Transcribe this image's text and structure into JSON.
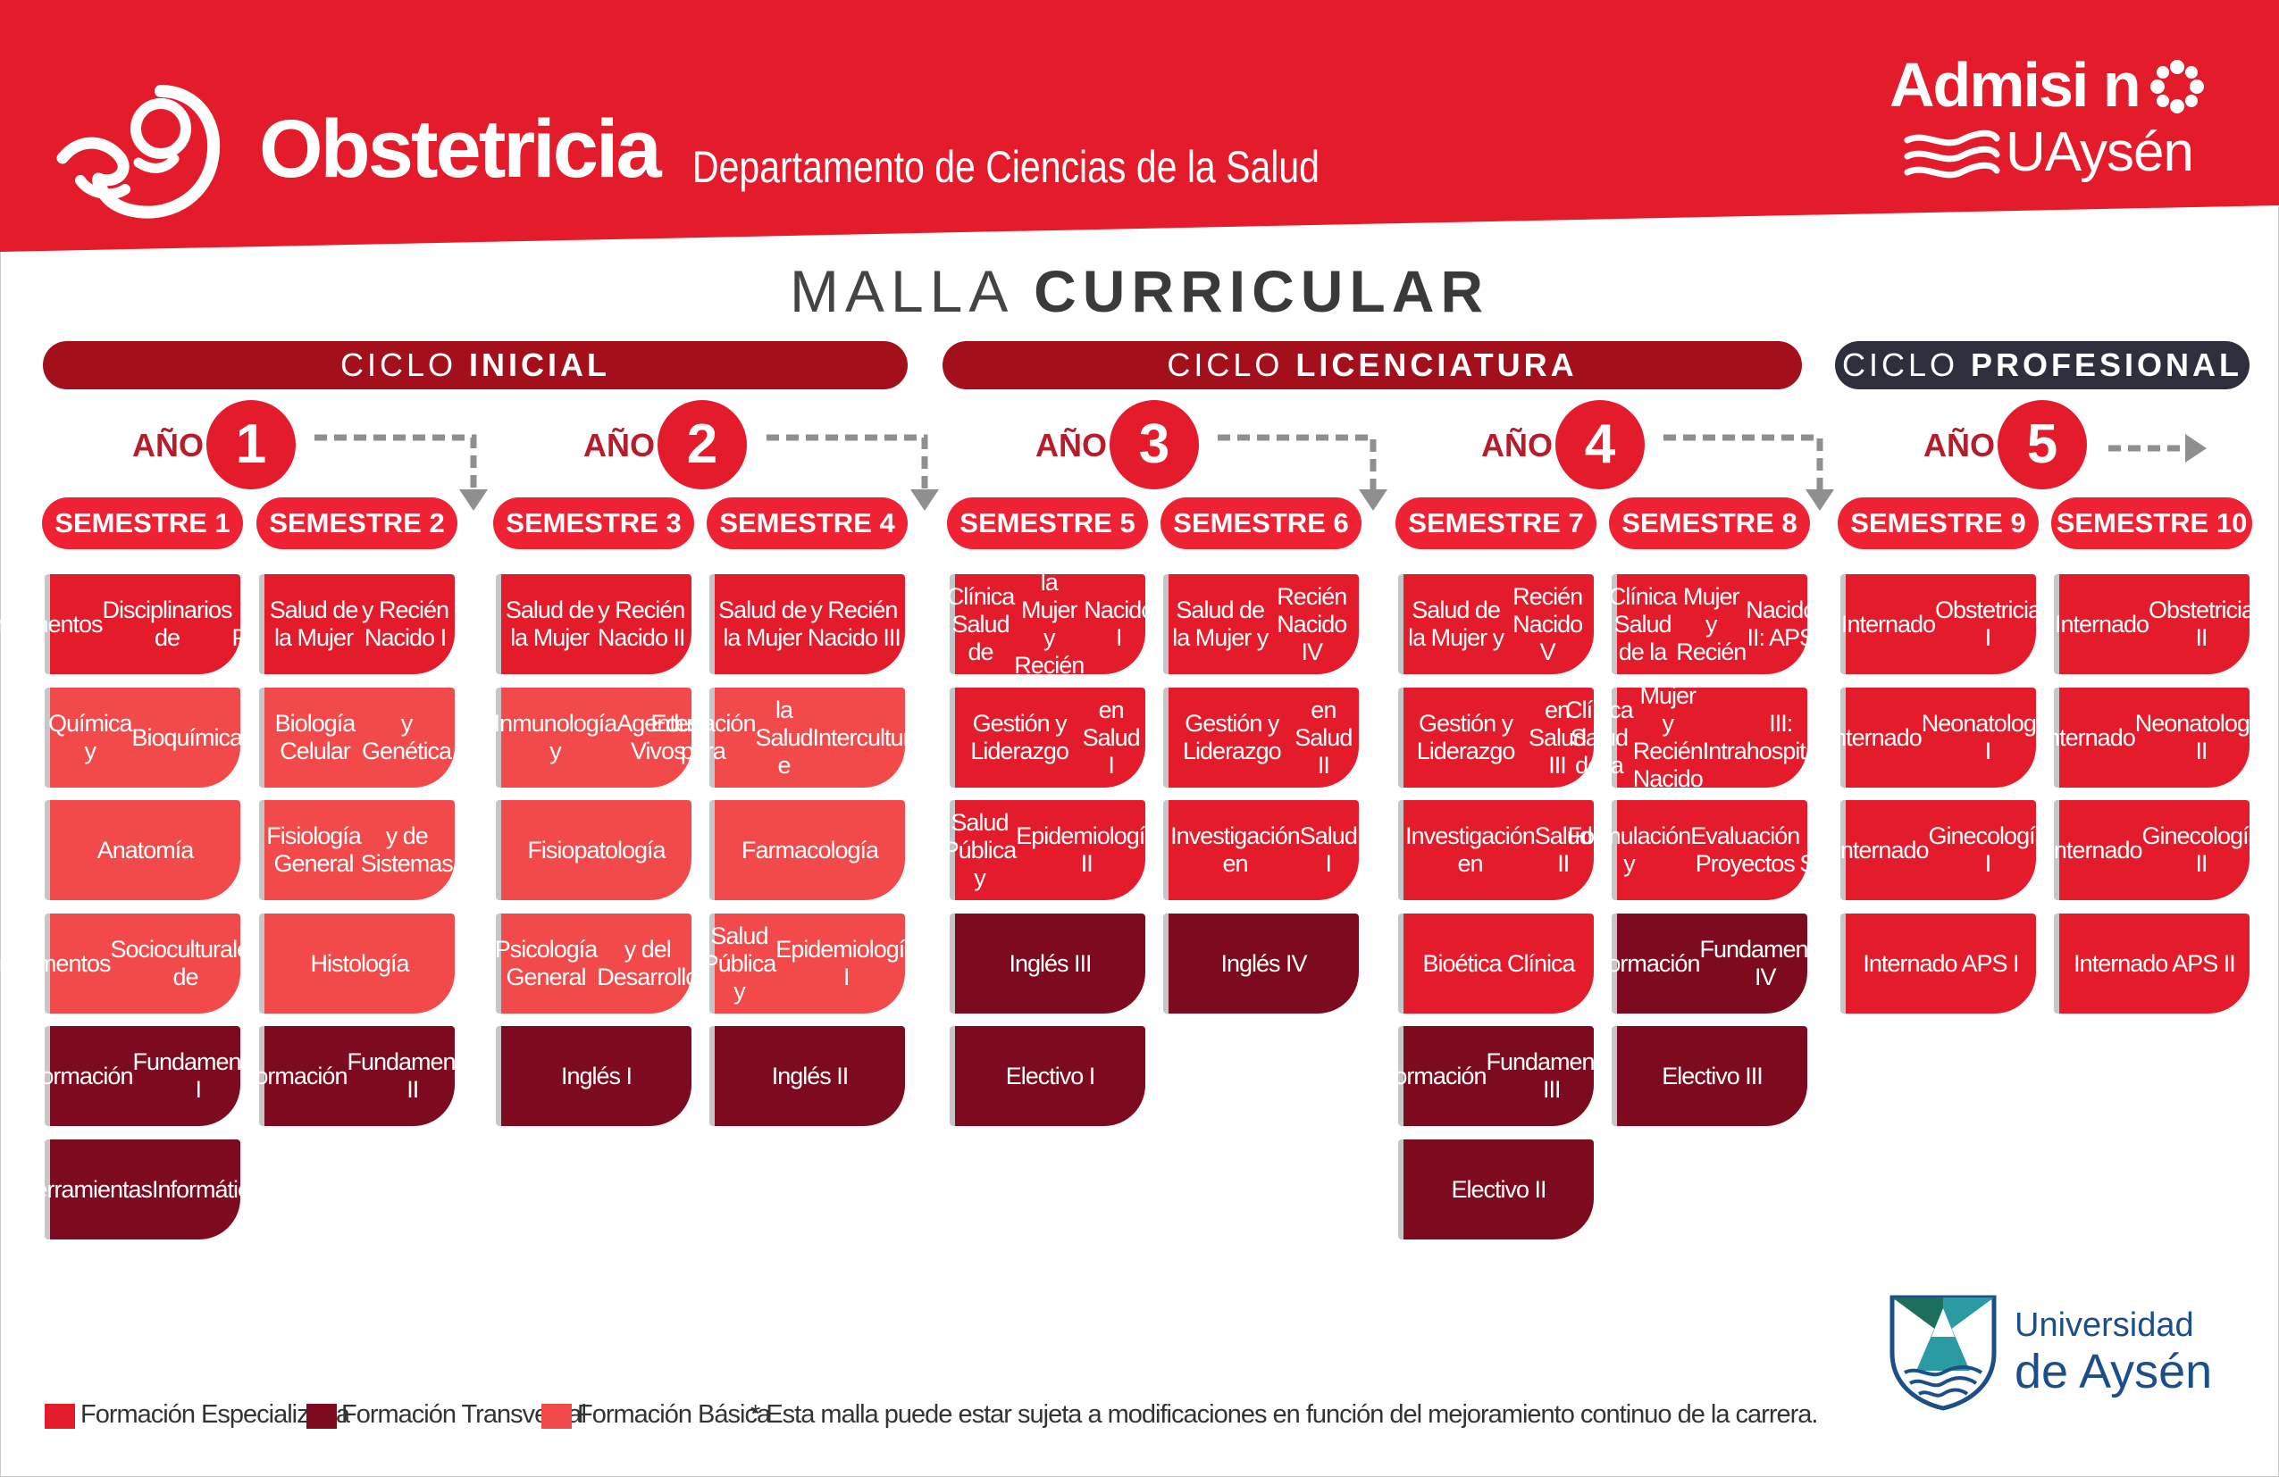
{
  "header": {
    "brand": "Obstetricia",
    "department": "Departamento de Ciencias de la Salud",
    "admission_line1": "Admisi  n",
    "admission_line2": "UAysén",
    "icon": "fetus-icon"
  },
  "title": {
    "part1": "MALLA ",
    "part2": "CURRICULAR"
  },
  "cycles": [
    {
      "prefix": "CICLO ",
      "name": "INICIAL"
    },
    {
      "prefix": "CICLO ",
      "name": "LICENCIATURA"
    },
    {
      "prefix": "CICLO ",
      "name": "PROFESIONAL"
    }
  ],
  "years": [
    {
      "label": "AÑO",
      "number": "1"
    },
    {
      "label": "AÑO",
      "number": "2"
    },
    {
      "label": "AÑO",
      "number": "3"
    },
    {
      "label": "AÑO",
      "number": "4"
    },
    {
      "label": "AÑO",
      "number": "5"
    }
  ],
  "semesters": [
    {
      "label": "SEMESTRE 1",
      "courses": [
        {
          "lines": [
            "Fundamentos",
            "Disciplinarios de",
            "la Profesión"
          ],
          "type": "especializada"
        },
        {
          "lines": [
            "Química y",
            "Bioquímica"
          ],
          "type": "basica"
        },
        {
          "lines": [
            "Anatomía"
          ],
          "type": "basica"
        },
        {
          "lines": [
            "Fundamentos",
            "Socioculturales de",
            "la Salud"
          ],
          "type": "basica"
        },
        {
          "lines": [
            "Formación",
            "Fundamental I"
          ],
          "type": "transversal"
        },
        {
          "lines": [
            "Herramientas",
            "Informáticas"
          ],
          "type": "transversal"
        }
      ]
    },
    {
      "label": "SEMESTRE 2",
      "courses": [
        {
          "lines": [
            "Salud de la Mujer",
            "y Recién Nacido I"
          ],
          "type": "especializada"
        },
        {
          "lines": [
            "Biología Celular",
            "y Genética"
          ],
          "type": "basica"
        },
        {
          "lines": [
            "Fisiología General",
            "y de Sistemas"
          ],
          "type": "basica"
        },
        {
          "lines": [
            "Histología"
          ],
          "type": "basica"
        },
        {
          "lines": [
            "Formación",
            "Fundamental II"
          ],
          "type": "transversal"
        }
      ]
    },
    {
      "label": "SEMESTRE 3",
      "courses": [
        {
          "lines": [
            "Salud de la Mujer",
            "y Recién Nacido II"
          ],
          "type": "especializada"
        },
        {
          "lines": [
            "Inmunología y",
            "Agentes Vivos"
          ],
          "type": "basica"
        },
        {
          "lines": [
            "Fisiopatología"
          ],
          "type": "basica"
        },
        {
          "lines": [
            "Psicología General",
            "y del Desarrollo"
          ],
          "type": "basica"
        },
        {
          "lines": [
            "Inglés I"
          ],
          "type": "transversal"
        }
      ]
    },
    {
      "label": "SEMESTRE 4",
      "courses": [
        {
          "lines": [
            "Salud de la Mujer",
            "y Recién Nacido III"
          ],
          "type": "especializada"
        },
        {
          "lines": [
            "Educación para",
            "la Salud e",
            "Interculturalidad"
          ],
          "type": "basica"
        },
        {
          "lines": [
            "Farmacología"
          ],
          "type": "basica"
        },
        {
          "lines": [
            "Salud Pública y",
            "Epidemiología I"
          ],
          "type": "basica"
        },
        {
          "lines": [
            "Inglés II"
          ],
          "type": "transversal"
        }
      ]
    },
    {
      "label": "SEMESTRE 5",
      "courses": [
        {
          "lines": [
            "Clínica Salud de",
            "la Mujer y Recién",
            "Nacido I"
          ],
          "type": "especializada"
        },
        {
          "lines": [
            "Gestión y Liderazgo",
            "en Salud  I"
          ],
          "type": "especializada"
        },
        {
          "lines": [
            "Salud Pública y",
            "Epidemiología II"
          ],
          "type": "especializada"
        },
        {
          "lines": [
            "Inglés III"
          ],
          "type": "transversal"
        },
        {
          "lines": [
            "Electivo I"
          ],
          "type": "transversal"
        }
      ]
    },
    {
      "label": "SEMESTRE 6",
      "courses": [
        {
          "lines": [
            "Salud de la Mujer y",
            "Recién Nacido  IV"
          ],
          "type": "especializada"
        },
        {
          "lines": [
            "Gestión y Liderazgo",
            "en Salud II"
          ],
          "type": "especializada"
        },
        {
          "lines": [
            "Investigación en",
            "Salud I"
          ],
          "type": "especializada"
        },
        {
          "lines": [
            "Inglés IV"
          ],
          "type": "transversal"
        }
      ]
    },
    {
      "label": "SEMESTRE 7",
      "courses": [
        {
          "lines": [
            "Salud de la Mujer y",
            "Recién Nacido  V"
          ],
          "type": "especializada"
        },
        {
          "lines": [
            "Gestión y Liderazgo",
            "en Salud III"
          ],
          "type": "especializada"
        },
        {
          "lines": [
            "Investigación en",
            "Salud II"
          ],
          "type": "especializada"
        },
        {
          "lines": [
            "Bioética Clínica"
          ],
          "type": "especializada"
        },
        {
          "lines": [
            "Formación",
            "Fundamental III"
          ],
          "type": "transversal"
        },
        {
          "lines": [
            "Electivo II"
          ],
          "type": "transversal"
        }
      ]
    },
    {
      "label": "SEMESTRE 8",
      "courses": [
        {
          "lines": [
            "Clínica Salud de la",
            "Mujer y  Recién",
            "Nacido II:  APS"
          ],
          "type": "especializada"
        },
        {
          "lines": [
            "Clínica Salud de la",
            "Mujer y Recién Nacido",
            "III:  Intrahospitalaria"
          ],
          "type": "especializada"
        },
        {
          "lines": [
            "Formulación y",
            "Evaluación Proyectos",
            "en Salud"
          ],
          "type": "especializada"
        },
        {
          "lines": [
            "Formación",
            "Fundamental IV"
          ],
          "type": "transversal"
        },
        {
          "lines": [
            "Electivo III"
          ],
          "type": "transversal"
        }
      ]
    },
    {
      "label": "SEMESTRE 9",
      "courses": [
        {
          "lines": [
            "Internado",
            "Obstetricia I"
          ],
          "type": "especializada"
        },
        {
          "lines": [
            "Internado",
            "Neonatología I"
          ],
          "type": "especializada"
        },
        {
          "lines": [
            "Internado",
            "Ginecología I"
          ],
          "type": "especializada"
        },
        {
          "lines": [
            "Internado APS I"
          ],
          "type": "especializada"
        }
      ]
    },
    {
      "label": "SEMESTRE 10",
      "courses": [
        {
          "lines": [
            "Internado",
            "Obstetricia II"
          ],
          "type": "especializada"
        },
        {
          "lines": [
            "Internado",
            "Neonatología II"
          ],
          "type": "especializada"
        },
        {
          "lines": [
            "Internado",
            "Ginecología II"
          ],
          "type": "especializada"
        },
        {
          "lines": [
            "Internado APS II"
          ],
          "type": "especializada"
        }
      ]
    }
  ],
  "legend": [
    {
      "label": "Formación Especializada",
      "color": "#e31b2b"
    },
    {
      "label": "Formación Transversal",
      "color": "#7d0a1f"
    },
    {
      "label": "Formación Básica",
      "color": "#f24a4a"
    }
  ],
  "note": "* Esta malla puede estar sujeta a modificaciones en función del mejoramiento continuo de la carrera.",
  "university": {
    "line1": "Universidad",
    "line2": "de Aysén"
  },
  "colors": {
    "banner_red": "#e31b2b",
    "cycle_dark_red": "#a3101c",
    "cycle_profesional": "#2e2f3d",
    "especializada": "#e31b2b",
    "transversal": "#7d0a1f",
    "basica": "#f24a4a",
    "arrow_gray": "#8f8f8f"
  }
}
